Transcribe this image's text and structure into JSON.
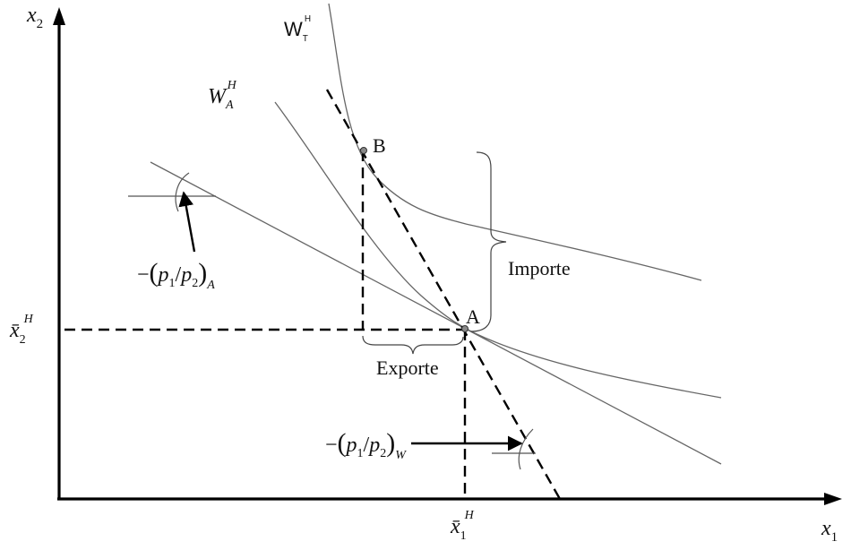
{
  "axes": {
    "x_label": "x",
    "x_sub": "1",
    "y_label": "x",
    "y_sub": "2"
  },
  "curves": {
    "trade_indifference": {
      "label": "W",
      "sub": "T",
      "sup": "H"
    },
    "autarky_indifference": {
      "label": "W",
      "sub": "A",
      "sup": "H"
    }
  },
  "points": {
    "autarky": "A",
    "trade": "B"
  },
  "endowments": {
    "x1": {
      "label": "x̄",
      "sub": "1",
      "sup": "H"
    },
    "x2": {
      "label": "x̄",
      "sub": "2",
      "sup": "H"
    }
  },
  "price_ratios": {
    "autarky": {
      "minus": "−",
      "p1": "p",
      "p1_sub": "1",
      "slash": "/",
      "p2": "p",
      "p2_sub": "2",
      "paren_sub": "A"
    },
    "world": {
      "minus": "−",
      "p1": "p",
      "p1_sub": "1",
      "slash": "/",
      "p2": "p",
      "p2_sub": "2",
      "paren_sub": "W"
    }
  },
  "annotations": {
    "import": "Importe",
    "export": "Exporte"
  }
}
